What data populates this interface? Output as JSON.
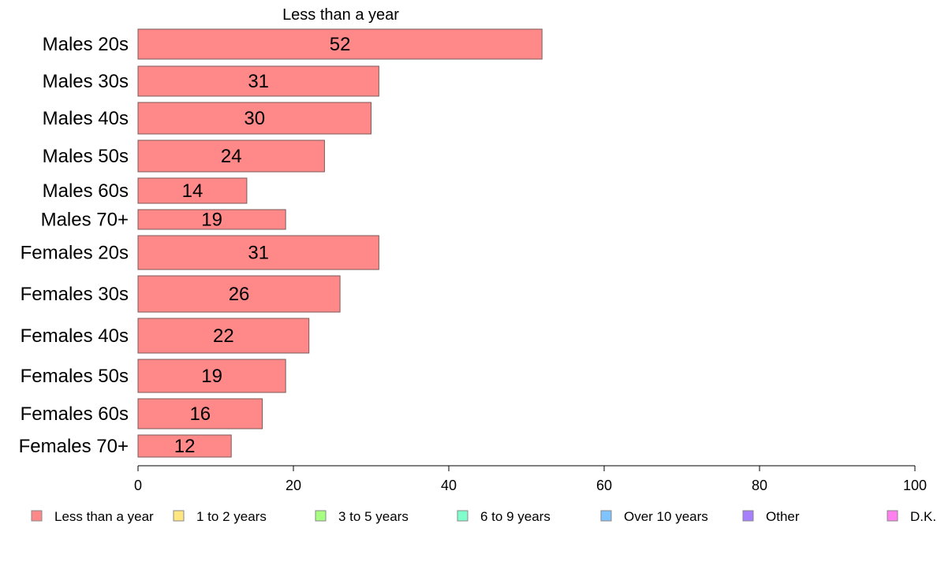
{
  "chart_data": {
    "type": "bar",
    "orientation": "horizontal",
    "title": "Less than a year",
    "categories": [
      "Males 20s",
      "Males 30s",
      "Males 40s",
      "Males 50s",
      "Males 60s",
      "Males 70+",
      "Females 20s",
      "Females 30s",
      "Females 40s",
      "Females 50s",
      "Females 60s",
      "Females 70+"
    ],
    "series": [
      {
        "name": "Less than a year",
        "values": [
          52,
          31,
          30,
          24,
          14,
          19,
          31,
          26,
          22,
          19,
          16,
          12
        ],
        "color": "#ff8888"
      }
    ],
    "xlim": [
      0,
      100
    ],
    "xticks": [
      "0",
      "20",
      "40",
      "60",
      "80",
      "100"
    ],
    "grid": false,
    "legend_position": "bottom",
    "legend": [
      {
        "label": "Less than a year",
        "color": "#ff8888"
      },
      {
        "label": "1 to 2 years",
        "color": "#ffe680"
      },
      {
        "label": "3 to 5 years",
        "color": "#a6ff80"
      },
      {
        "label": "6 to 9 years",
        "color": "#80ffcc"
      },
      {
        "label": "Over 10 years",
        "color": "#80c4ff"
      },
      {
        "label": "Other",
        "color": "#a680ff"
      },
      {
        "label": "D.K.",
        "color": "#ff80ee"
      }
    ]
  }
}
